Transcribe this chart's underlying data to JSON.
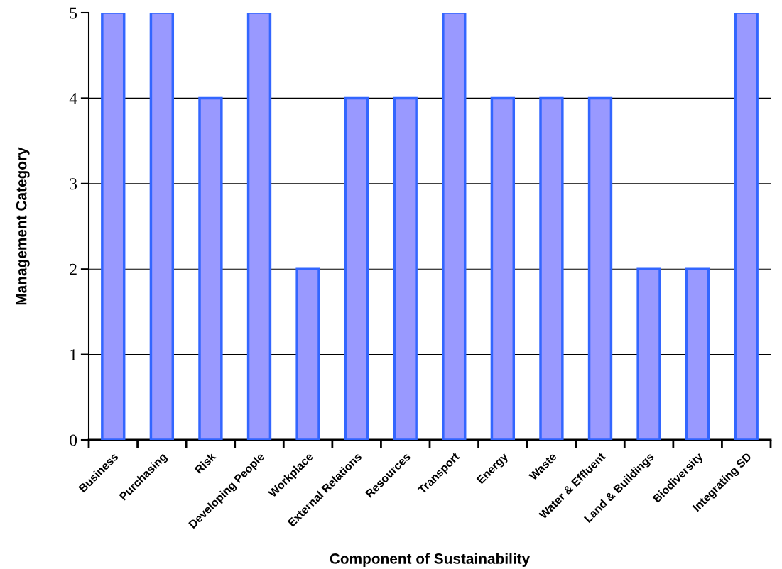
{
  "chart_data": {
    "type": "bar",
    "xlabel": "Component of Sustainability",
    "ylabel": "Management Category",
    "categories": [
      "Business",
      "Purchasing",
      "Risk",
      "Developing People",
      "Workplace",
      "External Relations",
      "Resources",
      "Transport",
      "Energy",
      "Waste",
      "Water & Effluent",
      "Land & Buildings",
      "Biodiversity",
      "Integrating SD"
    ],
    "values": [
      5,
      5,
      4,
      5,
      2,
      4,
      4,
      5,
      4,
      4,
      4,
      2,
      2,
      5
    ],
    "color": "#9999ff",
    "ylim": [
      0,
      5
    ],
    "yticks": [
      0,
      1,
      2,
      3,
      4,
      5
    ],
    "grid": "y"
  }
}
